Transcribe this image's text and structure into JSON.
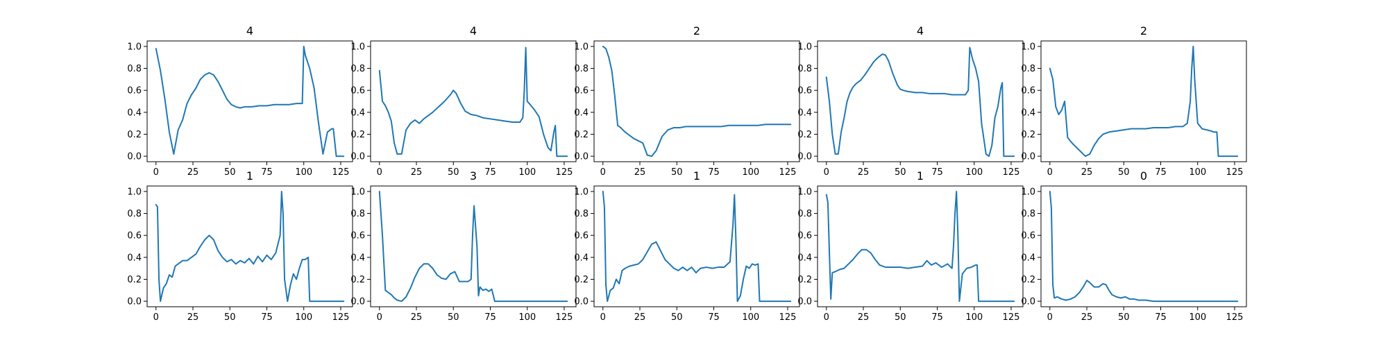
{
  "series_color": "#1f77b4",
  "chart_data": [
    {
      "type": "line",
      "title": "4",
      "xlim": [
        -6,
        133
      ],
      "ylim": [
        -0.05,
        1.05
      ],
      "xticks": [
        0,
        25,
        50,
        75,
        100,
        125
      ],
      "yticks": [
        0.0,
        0.2,
        0.4,
        0.6,
        0.8,
        1.0
      ],
      "x": [
        0,
        3,
        6,
        9,
        12,
        15,
        18,
        21,
        24,
        27,
        30,
        33,
        36,
        39,
        42,
        45,
        48,
        51,
        54,
        57,
        60,
        65,
        70,
        75,
        80,
        85,
        90,
        95,
        99,
        100,
        101,
        104,
        107,
        110,
        113,
        116,
        119,
        120,
        122,
        124,
        125,
        127
      ],
      "y": [
        0.98,
        0.78,
        0.52,
        0.22,
        0.02,
        0.24,
        0.33,
        0.48,
        0.56,
        0.62,
        0.7,
        0.74,
        0.76,
        0.74,
        0.68,
        0.6,
        0.52,
        0.47,
        0.45,
        0.44,
        0.45,
        0.45,
        0.46,
        0.46,
        0.47,
        0.47,
        0.47,
        0.48,
        0.48,
        1.0,
        0.92,
        0.8,
        0.62,
        0.3,
        0.02,
        0.22,
        0.25,
        0.25,
        0.0,
        0.0,
        0.0,
        0.0
      ]
    },
    {
      "type": "line",
      "title": "4",
      "xlim": [
        -6,
        133
      ],
      "ylim": [
        -0.05,
        1.05
      ],
      "xticks": [
        0,
        25,
        50,
        75,
        100,
        125
      ],
      "yticks": [
        0.0,
        0.2,
        0.4,
        0.6,
        0.8,
        1.0
      ],
      "x": [
        0,
        2,
        4,
        6,
        8,
        10,
        12,
        15,
        18,
        21,
        24,
        27,
        30,
        33,
        36,
        40,
        44,
        48,
        50,
        52,
        55,
        58,
        62,
        66,
        70,
        75,
        80,
        85,
        90,
        95,
        97,
        98,
        99,
        100,
        102,
        105,
        108,
        111,
        114,
        116,
        118,
        119,
        120,
        122,
        124,
        127
      ],
      "y": [
        0.78,
        0.5,
        0.46,
        0.4,
        0.32,
        0.12,
        0.02,
        0.02,
        0.24,
        0.3,
        0.33,
        0.3,
        0.34,
        0.37,
        0.4,
        0.45,
        0.5,
        0.56,
        0.6,
        0.57,
        0.48,
        0.41,
        0.38,
        0.37,
        0.35,
        0.34,
        0.33,
        0.32,
        0.31,
        0.31,
        0.35,
        0.6,
        0.99,
        0.5,
        0.47,
        0.42,
        0.36,
        0.2,
        0.08,
        0.05,
        0.22,
        0.28,
        0.0,
        0.0,
        0.0,
        0.0
      ]
    },
    {
      "type": "line",
      "title": "2",
      "xlim": [
        -6,
        133
      ],
      "ylim": [
        -0.05,
        1.05
      ],
      "xticks": [
        0,
        25,
        50,
        75,
        100,
        125
      ],
      "yticks": [
        0.0,
        0.2,
        0.4,
        0.6,
        0.8,
        1.0
      ],
      "x": [
        0,
        2,
        4,
        6,
        8,
        10,
        12,
        15,
        18,
        21,
        24,
        27,
        30,
        33,
        36,
        40,
        44,
        48,
        52,
        56,
        60,
        65,
        70,
        75,
        80,
        85,
        90,
        95,
        100,
        105,
        110,
        115,
        120,
        125,
        127
      ],
      "y": [
        1.0,
        0.98,
        0.9,
        0.78,
        0.55,
        0.28,
        0.26,
        0.22,
        0.19,
        0.16,
        0.14,
        0.12,
        0.01,
        0.0,
        0.05,
        0.18,
        0.24,
        0.26,
        0.26,
        0.27,
        0.27,
        0.27,
        0.27,
        0.27,
        0.27,
        0.28,
        0.28,
        0.28,
        0.28,
        0.28,
        0.29,
        0.29,
        0.29,
        0.29,
        0.29
      ]
    },
    {
      "type": "line",
      "title": "4",
      "xlim": [
        -6,
        133
      ],
      "ylim": [
        -0.05,
        1.05
      ],
      "xticks": [
        0,
        25,
        50,
        75,
        100,
        125
      ],
      "yticks": [
        0.0,
        0.2,
        0.4,
        0.6,
        0.8,
        1.0
      ],
      "x": [
        0,
        2,
        4,
        6,
        8,
        10,
        12,
        14,
        16,
        18,
        20,
        23,
        26,
        29,
        32,
        35,
        38,
        40,
        42,
        45,
        48,
        50,
        52,
        55,
        60,
        65,
        70,
        75,
        80,
        85,
        90,
        94,
        96,
        97,
        99,
        101,
        103,
        105,
        108,
        110,
        112,
        114,
        116,
        118,
        119,
        120,
        122,
        125,
        127
      ],
      "y": [
        0.72,
        0.5,
        0.2,
        0.02,
        0.02,
        0.22,
        0.35,
        0.5,
        0.58,
        0.63,
        0.66,
        0.69,
        0.74,
        0.8,
        0.86,
        0.9,
        0.93,
        0.92,
        0.87,
        0.75,
        0.65,
        0.61,
        0.6,
        0.59,
        0.58,
        0.58,
        0.57,
        0.57,
        0.57,
        0.56,
        0.56,
        0.56,
        0.6,
        0.99,
        0.88,
        0.8,
        0.68,
        0.3,
        0.02,
        0.0,
        0.1,
        0.35,
        0.45,
        0.62,
        0.67,
        0.0,
        0.0,
        0.0,
        0.0
      ]
    },
    {
      "type": "line",
      "title": "2",
      "xlim": [
        -6,
        133
      ],
      "ylim": [
        -0.05,
        1.05
      ],
      "xticks": [
        0,
        25,
        50,
        75,
        100,
        125
      ],
      "yticks": [
        0.0,
        0.2,
        0.4,
        0.6,
        0.8,
        1.0
      ],
      "x": [
        0,
        2,
        4,
        6,
        8,
        10,
        12,
        15,
        18,
        21,
        24,
        27,
        30,
        33,
        36,
        40,
        45,
        50,
        55,
        60,
        65,
        70,
        75,
        80,
        85,
        90,
        93,
        95,
        96,
        97,
        98,
        100,
        103,
        106,
        109,
        111,
        113,
        114,
        116,
        120,
        125,
        127
      ],
      "y": [
        0.8,
        0.7,
        0.45,
        0.38,
        0.42,
        0.5,
        0.17,
        0.12,
        0.08,
        0.04,
        0.0,
        0.02,
        0.1,
        0.16,
        0.2,
        0.22,
        0.23,
        0.24,
        0.25,
        0.25,
        0.25,
        0.26,
        0.26,
        0.26,
        0.27,
        0.27,
        0.3,
        0.5,
        0.8,
        1.0,
        0.7,
        0.3,
        0.25,
        0.24,
        0.23,
        0.22,
        0.22,
        0.0,
        0.0,
        0.0,
        0.0,
        0.0
      ]
    },
    {
      "type": "line",
      "title": "1",
      "xlim": [
        -6,
        133
      ],
      "ylim": [
        -0.05,
        1.05
      ],
      "xticks": [
        0,
        25,
        50,
        75,
        100,
        125
      ],
      "yticks": [
        0.0,
        0.2,
        0.4,
        0.6,
        0.8,
        1.0
      ],
      "x": [
        0,
        1,
        2,
        3,
        5,
        7,
        9,
        11,
        13,
        15,
        18,
        21,
        24,
        27,
        30,
        33,
        36,
        39,
        42,
        45,
        48,
        51,
        54,
        57,
        60,
        63,
        66,
        69,
        72,
        75,
        78,
        81,
        84,
        85,
        86,
        87,
        89,
        91,
        93,
        95,
        97,
        99,
        101,
        103,
        104,
        106,
        110,
        115,
        120,
        125,
        127
      ],
      "y": [
        0.88,
        0.86,
        0.2,
        0.0,
        0.12,
        0.16,
        0.24,
        0.22,
        0.32,
        0.34,
        0.37,
        0.37,
        0.4,
        0.43,
        0.5,
        0.56,
        0.6,
        0.56,
        0.46,
        0.4,
        0.36,
        0.38,
        0.34,
        0.37,
        0.35,
        0.39,
        0.34,
        0.41,
        0.36,
        0.42,
        0.38,
        0.44,
        0.6,
        1.0,
        0.8,
        0.2,
        0.0,
        0.15,
        0.25,
        0.2,
        0.3,
        0.38,
        0.38,
        0.4,
        0.0,
        0.0,
        0.0,
        0.0,
        0.0,
        0.0,
        0.0
      ]
    },
    {
      "type": "line",
      "title": "3",
      "xlim": [
        -6,
        133
      ],
      "ylim": [
        -0.05,
        1.05
      ],
      "xticks": [
        0,
        25,
        50,
        75,
        100,
        125
      ],
      "yticks": [
        0.0,
        0.2,
        0.4,
        0.6,
        0.8,
        1.0
      ],
      "x": [
        0,
        2,
        4,
        6,
        8,
        10,
        12,
        15,
        18,
        21,
        24,
        27,
        30,
        33,
        36,
        39,
        42,
        45,
        48,
        51,
        54,
        57,
        60,
        62,
        63,
        64,
        66,
        67,
        68,
        70,
        72,
        74,
        76,
        78,
        80,
        85,
        90,
        95,
        100,
        105,
        110,
        115,
        120,
        125,
        127
      ],
      "y": [
        1.0,
        0.6,
        0.1,
        0.08,
        0.06,
        0.03,
        0.01,
        0.0,
        0.04,
        0.12,
        0.22,
        0.3,
        0.34,
        0.34,
        0.3,
        0.24,
        0.21,
        0.2,
        0.25,
        0.27,
        0.18,
        0.18,
        0.18,
        0.2,
        0.6,
        0.87,
        0.5,
        0.05,
        0.13,
        0.1,
        0.11,
        0.09,
        0.11,
        0.0,
        0.0,
        0.0,
        0.0,
        0.0,
        0.0,
        0.0,
        0.0,
        0.0,
        0.0,
        0.0,
        0.0
      ]
    },
    {
      "type": "line",
      "title": "1",
      "xlim": [
        -6,
        133
      ],
      "ylim": [
        -0.05,
        1.05
      ],
      "xticks": [
        0,
        25,
        50,
        75,
        100,
        125
      ],
      "yticks": [
        0.0,
        0.2,
        0.4,
        0.6,
        0.8,
        1.0
      ],
      "x": [
        0,
        1,
        2,
        3,
        5,
        7,
        9,
        11,
        13,
        15,
        18,
        21,
        24,
        27,
        30,
        33,
        36,
        39,
        42,
        45,
        48,
        51,
        54,
        57,
        60,
        63,
        66,
        70,
        74,
        78,
        82,
        86,
        88,
        89,
        90,
        91,
        93,
        95,
        97,
        99,
        101,
        103,
        105,
        106,
        108,
        112,
        116,
        120,
        125,
        127
      ],
      "y": [
        1.0,
        0.86,
        0.15,
        0.0,
        0.1,
        0.12,
        0.2,
        0.16,
        0.28,
        0.3,
        0.32,
        0.33,
        0.34,
        0.38,
        0.45,
        0.52,
        0.54,
        0.46,
        0.38,
        0.34,
        0.3,
        0.28,
        0.31,
        0.28,
        0.31,
        0.26,
        0.3,
        0.31,
        0.3,
        0.31,
        0.31,
        0.36,
        0.7,
        0.97,
        0.55,
        0.0,
        0.05,
        0.2,
        0.32,
        0.3,
        0.34,
        0.33,
        0.34,
        0.0,
        0.0,
        0.0,
        0.0,
        0.0,
        0.0,
        0.0
      ]
    },
    {
      "type": "line",
      "title": "1",
      "xlim": [
        -6,
        133
      ],
      "ylim": [
        -0.05,
        1.05
      ],
      "xticks": [
        0,
        25,
        50,
        75,
        100,
        125
      ],
      "yticks": [
        0.0,
        0.2,
        0.4,
        0.6,
        0.8,
        1.0
      ],
      "x": [
        0,
        1,
        2,
        3,
        4,
        6,
        9,
        12,
        15,
        18,
        21,
        24,
        27,
        30,
        33,
        36,
        40,
        45,
        50,
        55,
        60,
        65,
        68,
        71,
        74,
        78,
        82,
        85,
        86,
        87,
        88,
        89,
        90,
        92,
        95,
        98,
        101,
        102,
        103,
        105,
        110,
        115,
        120,
        125,
        127
      ],
      "y": [
        0.97,
        0.9,
        0.45,
        0.02,
        0.26,
        0.27,
        0.29,
        0.3,
        0.34,
        0.38,
        0.43,
        0.47,
        0.47,
        0.44,
        0.38,
        0.33,
        0.31,
        0.31,
        0.31,
        0.3,
        0.31,
        0.32,
        0.37,
        0.33,
        0.35,
        0.31,
        0.34,
        0.3,
        0.5,
        0.8,
        1.0,
        0.6,
        0.0,
        0.25,
        0.3,
        0.31,
        0.33,
        0.33,
        0.0,
        0.0,
        0.0,
        0.0,
        0.0,
        0.0,
        0.0
      ]
    },
    {
      "type": "line",
      "title": "0",
      "xlim": [
        -6,
        133
      ],
      "ylim": [
        -0.05,
        1.05
      ],
      "xticks": [
        0,
        25,
        50,
        75,
        100,
        125
      ],
      "yticks": [
        0.0,
        0.2,
        0.4,
        0.6,
        0.8,
        1.0
      ],
      "x": [
        0,
        1,
        2,
        3,
        5,
        8,
        11,
        14,
        17,
        20,
        23,
        25,
        27,
        30,
        33,
        36,
        38,
        40,
        42,
        45,
        48,
        51,
        54,
        57,
        60,
        65,
        70,
        80,
        90,
        100,
        110,
        120,
        125,
        127
      ],
      "y": [
        1.0,
        0.85,
        0.15,
        0.03,
        0.04,
        0.02,
        0.01,
        0.02,
        0.04,
        0.08,
        0.14,
        0.19,
        0.17,
        0.13,
        0.13,
        0.16,
        0.15,
        0.1,
        0.06,
        0.04,
        0.03,
        0.04,
        0.02,
        0.02,
        0.01,
        0.01,
        0.0,
        0.0,
        0.0,
        0.0,
        0.0,
        0.0,
        0.0,
        0.0
      ]
    }
  ]
}
